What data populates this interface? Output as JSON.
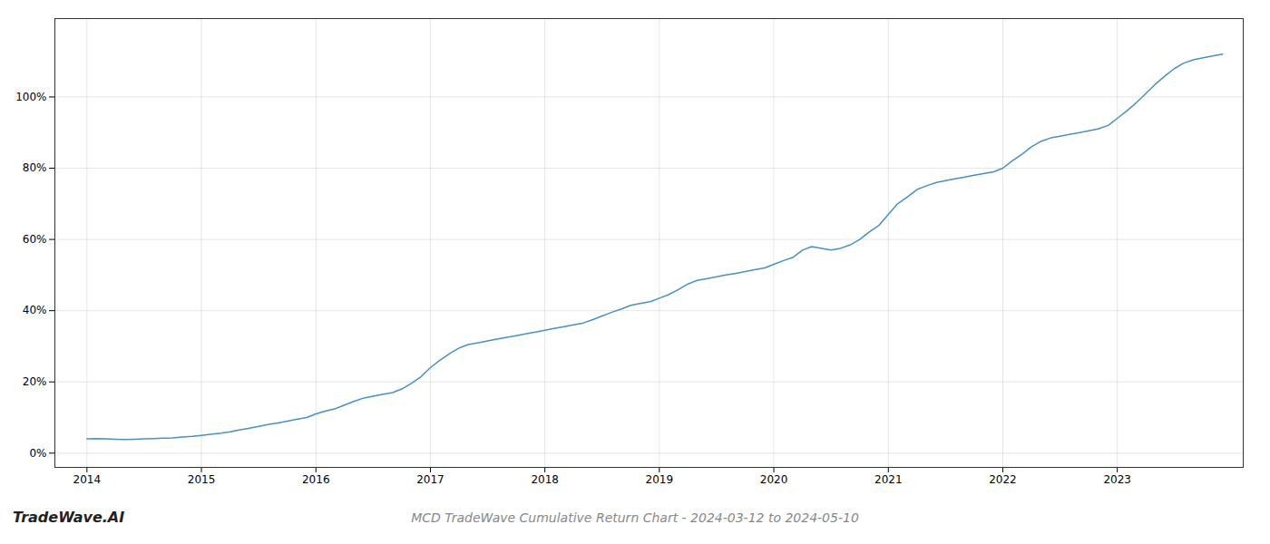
{
  "chart_data": {
    "type": "line",
    "title": "MCD TradeWave Cumulative Return Chart - 2024-03-12 to 2024-05-10",
    "annotations": [
      "TradeWave.AI"
    ],
    "color": "#4a90c4",
    "grid": true,
    "x": [
      2014.0,
      2014.08,
      2014.17,
      2014.25,
      2014.33,
      2014.42,
      2014.5,
      2014.58,
      2014.67,
      2014.75,
      2014.83,
      2014.92,
      2015.0,
      2015.08,
      2015.17,
      2015.25,
      2015.33,
      2015.42,
      2015.5,
      2015.58,
      2015.67,
      2015.75,
      2015.83,
      2015.92,
      2016.0,
      2016.08,
      2016.17,
      2016.25,
      2016.33,
      2016.42,
      2016.5,
      2016.58,
      2016.67,
      2016.75,
      2016.83,
      2016.92,
      2017.0,
      2017.08,
      2017.17,
      2017.25,
      2017.33,
      2017.42,
      2017.5,
      2017.58,
      2017.67,
      2017.75,
      2017.83,
      2017.92,
      2018.0,
      2018.08,
      2018.17,
      2018.25,
      2018.33,
      2018.42,
      2018.5,
      2018.58,
      2018.67,
      2018.75,
      2018.83,
      2018.92,
      2019.0,
      2019.08,
      2019.17,
      2019.25,
      2019.33,
      2019.42,
      2019.5,
      2019.58,
      2019.67,
      2019.75,
      2019.83,
      2019.92,
      2020.0,
      2020.08,
      2020.17,
      2020.25,
      2020.33,
      2020.42,
      2020.5,
      2020.58,
      2020.67,
      2020.75,
      2020.83,
      2020.92,
      2021.0,
      2021.08,
      2021.17,
      2021.25,
      2021.33,
      2021.42,
      2021.5,
      2021.58,
      2021.67,
      2021.75,
      2021.83,
      2021.92,
      2022.0,
      2022.08,
      2022.17,
      2022.25,
      2022.33,
      2022.42,
      2022.5,
      2022.58,
      2022.67,
      2022.75,
      2022.83,
      2022.92,
      2023.0,
      2023.08,
      2023.17,
      2023.25,
      2023.33,
      2023.42,
      2023.5,
      2023.58,
      2023.67,
      2023.75,
      2023.83,
      2023.92
    ],
    "values": [
      4.0,
      4.1,
      4.0,
      3.9,
      3.8,
      3.9,
      4.0,
      4.1,
      4.2,
      4.3,
      4.5,
      4.7,
      5.0,
      5.3,
      5.6,
      6.0,
      6.5,
      7.0,
      7.5,
      8.0,
      8.5,
      9.0,
      9.5,
      10.0,
      11.0,
      11.8,
      12.5,
      13.5,
      14.5,
      15.5,
      16.0,
      16.5,
      17.0,
      18.0,
      19.5,
      21.5,
      24.0,
      26.0,
      28.0,
      29.5,
      30.5,
      31.0,
      31.5,
      32.0,
      32.5,
      33.0,
      33.5,
      34.0,
      34.5,
      35.0,
      35.5,
      36.0,
      36.5,
      37.5,
      38.5,
      39.5,
      40.5,
      41.5,
      42.0,
      42.5,
      43.5,
      44.5,
      46.0,
      47.5,
      48.5,
      49.0,
      49.5,
      50.0,
      50.5,
      51.0,
      51.5,
      52.0,
      53.0,
      54.0,
      55.0,
      57.0,
      58.0,
      57.5,
      57.0,
      57.5,
      58.5,
      60.0,
      62.0,
      64.0,
      67.0,
      70.0,
      72.0,
      74.0,
      75.0,
      76.0,
      76.5,
      77.0,
      77.5,
      78.0,
      78.5,
      79.0,
      80.0,
      82.0,
      84.0,
      86.0,
      87.5,
      88.5,
      89.0,
      89.5,
      90.0,
      90.5,
      91.0,
      92.0,
      94.0,
      96.0,
      98.5,
      101.0,
      103.5,
      106.0,
      108.0,
      109.5,
      110.5,
      111.0,
      111.5,
      112.0
    ],
    "xlim": [
      2013.72,
      2024.1
    ],
    "xticks": [
      2014,
      2015,
      2016,
      2017,
      2018,
      2019,
      2020,
      2021,
      2022,
      2023
    ],
    "ylim": [
      -4,
      122
    ],
    "yticks": [
      {
        "value": 0,
        "label": "0%"
      },
      {
        "value": 20,
        "label": "20%"
      },
      {
        "value": 40,
        "label": "40%"
      },
      {
        "value": 60,
        "label": "60%"
      },
      {
        "value": 80,
        "label": "80%"
      },
      {
        "value": 100,
        "label": "100%"
      }
    ]
  }
}
